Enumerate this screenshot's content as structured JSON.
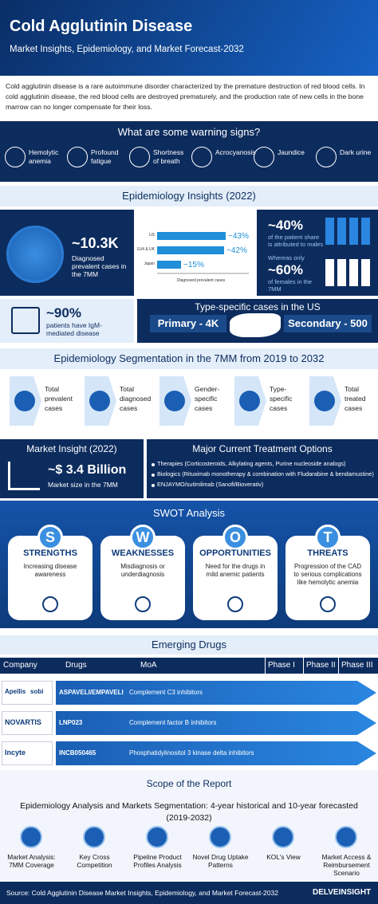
{
  "header": {
    "title": "Cold Agglutinin Disease",
    "subtitle": "Market Insights, Epidemiology, and Market Forecast-2032"
  },
  "intro": "Cold agglutinin disease is a rare autoimmune disorder characterized by the premature destruction of red blood cells. In cold agglutinin disease, the red blood cells are destroyed prematurely, and the production rate of new cells in the bone marrow can no longer compensate for their loss.",
  "warning_signs": {
    "title": "What are some warning signs?",
    "items": [
      "Hemolytic anemia",
      "Profound fatigue",
      "Shortness of breath",
      "Acrocyanosis",
      "Jaundice",
      "Dark urine"
    ]
  },
  "epidemiology": {
    "title": "Epidemiology Insights (2022)",
    "prevalent": {
      "value": "~10.3K",
      "label": "Diagnosed prevalent cases in the 7MM"
    },
    "bar_chart": {
      "categories": [
        "US",
        "EU4 & UK",
        "Japan"
      ],
      "values": [
        43,
        42,
        15
      ],
      "value_labels": [
        "~43%",
        "~42%",
        "~15%"
      ],
      "xlabel": "Diagnosed prevalent cases",
      "color": "#1e8fd8"
    },
    "males": {
      "value": "~40%",
      "label": "of the patient share is attributed to males"
    },
    "females": {
      "prefix": "Whereas only",
      "value": "~60%",
      "label": "of females in the 7MM"
    },
    "igm": {
      "value": "~90%",
      "label": "patients have IgM-mediated disease"
    },
    "type_specific": {
      "title": "Type-specific cases in the US",
      "primary": "Primary - 4K",
      "secondary": "Secondary - 500"
    }
  },
  "segmentation": {
    "title": "Epidemiology Segmentation in the 7MM from 2019 to 2032",
    "items": [
      "Total prevalent cases",
      "Total diagnosed cases",
      "Gender-specific cases",
      "Type-specific cases",
      "Total treated cases"
    ]
  },
  "market": {
    "title": "Market Insight (2022)",
    "value": "~$ 3.4 Billion",
    "label": "Market size in the 7MM"
  },
  "treatments": {
    "title": "Major Current Treatment Options",
    "items": [
      "Therapies (Corticosteroids, Alkylating agents, Purine nucleoside analogs)",
      "Biologics (Rituximab monotherapy & combination with Fludarabine & bendamustine)",
      "ENJAYMO/sutimlimab (Sanofi/Bioverativ)"
    ]
  },
  "swot": {
    "title": "SWOT Analysis",
    "items": [
      {
        "letter": "S",
        "heading": "STRENGTHS",
        "text": "Increasing disease awareness"
      },
      {
        "letter": "W",
        "heading": "WEAKNESSES",
        "text": "Misdiagnosis or underdiagnosis"
      },
      {
        "letter": "O",
        "heading": "OPPORTUNITIES",
        "text": "Need for the drugs in mild anemic patients"
      },
      {
        "letter": "T",
        "heading": "THREATS",
        "text": "Progression of the CAD to serious complications like hemolytic anemia"
      }
    ]
  },
  "emerging_drugs": {
    "title": "Emerging Drugs",
    "columns": [
      "Company",
      "Drugs",
      "MoA",
      "Phase I",
      "Phase II",
      "Phase III"
    ],
    "rows": [
      {
        "company": [
          "Apellis",
          "sobi"
        ],
        "drug": "ASPAVELI/EMPAVELI",
        "moa": "Complement C3 inhibitors"
      },
      {
        "company": [
          "NOVARTIS"
        ],
        "drug": "LNP023",
        "moa": "Complement factor B inhibitors"
      },
      {
        "company": [
          "Incyte"
        ],
        "drug": "INCB050465",
        "moa": "Phosphatidylinositol 3 kinase delta inhibitors"
      }
    ]
  },
  "scope": {
    "title": "Scope of the Report",
    "subtitle": "Epidemiology Analysis and Markets Segmentation: 4-year historical and 10-year forecasted (2019-2032)",
    "items": [
      "Market Analysis: 7MM Coverage",
      "Key Cross Competition",
      "Pipeline Product Profiles Analysis",
      "Novel Drug Uptake Patterns",
      "KOL's View",
      "Market Access & Reimbursement Scenario"
    ]
  },
  "footer": {
    "source": "Source: Cold Agglutinin Disease Market Insights, Epidemiology, and Market Forecast-2032",
    "logo": "DELVEINSIGHT"
  }
}
